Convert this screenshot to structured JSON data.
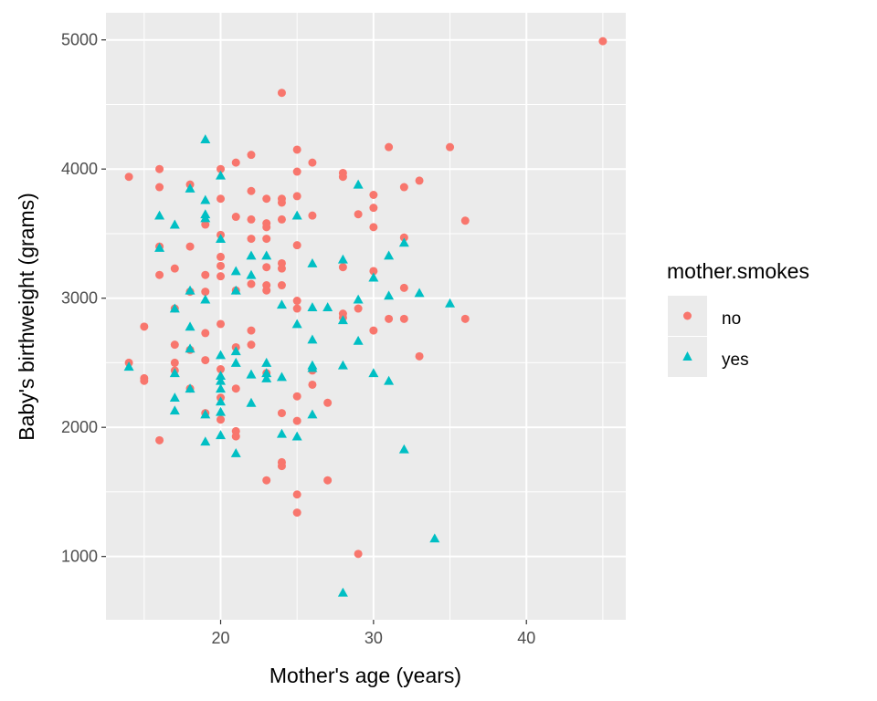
{
  "chart_data": {
    "type": "scatter",
    "title": "",
    "xlabel": "Mother's age (years)",
    "ylabel": "Baby's birthweight (grams)",
    "xlim": [
      12.5,
      46.5
    ],
    "ylim": [
      510,
      5210
    ],
    "x_ticks": [
      20,
      30,
      40
    ],
    "y_ticks": [
      1000,
      2000,
      3000,
      4000,
      5000
    ],
    "x_tick_labels": [
      "20",
      "30",
      "40"
    ],
    "y_tick_labels": [
      "1000",
      "2000",
      "3000",
      "4000",
      "5000"
    ],
    "grid": true,
    "legend": {
      "title": "mother.smokes",
      "position": "right"
    },
    "series": [
      {
        "name": "no",
        "marker": "circle",
        "color": "#F8766D",
        "points": [
          [
            14,
            3940
          ],
          [
            14,
            2500
          ],
          [
            15,
            2780
          ],
          [
            15,
            2380
          ],
          [
            15,
            2360
          ],
          [
            16,
            4000
          ],
          [
            16,
            3860
          ],
          [
            16,
            3400
          ],
          [
            16,
            3180
          ],
          [
            16,
            1900
          ],
          [
            17,
            3230
          ],
          [
            17,
            2920
          ],
          [
            17,
            2640
          ],
          [
            17,
            2500
          ],
          [
            17,
            2440
          ],
          [
            18,
            3880
          ],
          [
            18,
            3400
          ],
          [
            18,
            3050
          ],
          [
            18,
            2600
          ],
          [
            18,
            2300
          ],
          [
            19,
            3570
          ],
          [
            19,
            3180
          ],
          [
            19,
            3050
          ],
          [
            19,
            2730
          ],
          [
            19,
            2520
          ],
          [
            19,
            2110
          ],
          [
            20,
            4000
          ],
          [
            20,
            3770
          ],
          [
            20,
            3490
          ],
          [
            20,
            3320
          ],
          [
            20,
            3250
          ],
          [
            20,
            3170
          ],
          [
            20,
            2800
          ],
          [
            20,
            2450
          ],
          [
            20,
            2230
          ],
          [
            20,
            2060
          ],
          [
            21,
            4050
          ],
          [
            21,
            3630
          ],
          [
            21,
            3060
          ],
          [
            21,
            2620
          ],
          [
            21,
            2300
          ],
          [
            21,
            1970
          ],
          [
            21,
            1930
          ],
          [
            22,
            4110
          ],
          [
            22,
            3830
          ],
          [
            22,
            3610
          ],
          [
            22,
            3460
          ],
          [
            22,
            3110
          ],
          [
            22,
            2750
          ],
          [
            22,
            2640
          ],
          [
            23,
            3770
          ],
          [
            23,
            3580
          ],
          [
            23,
            3550
          ],
          [
            23,
            3460
          ],
          [
            23,
            3240
          ],
          [
            23,
            3100
          ],
          [
            23,
            3060
          ],
          [
            23,
            2420
          ],
          [
            23,
            1590
          ],
          [
            24,
            4590
          ],
          [
            24,
            3770
          ],
          [
            24,
            3740
          ],
          [
            24,
            3610
          ],
          [
            24,
            3270
          ],
          [
            24,
            3230
          ],
          [
            24,
            3100
          ],
          [
            24,
            2110
          ],
          [
            24,
            1730
          ],
          [
            24,
            1700
          ],
          [
            25,
            4150
          ],
          [
            25,
            3980
          ],
          [
            25,
            3790
          ],
          [
            25,
            3410
          ],
          [
            25,
            2980
          ],
          [
            25,
            2920
          ],
          [
            25,
            2240
          ],
          [
            25,
            2050
          ],
          [
            25,
            1480
          ],
          [
            25,
            1340
          ],
          [
            26,
            4050
          ],
          [
            26,
            3640
          ],
          [
            26,
            2440
          ],
          [
            26,
            2330
          ],
          [
            27,
            2190
          ],
          [
            27,
            1590
          ],
          [
            28,
            3970
          ],
          [
            28,
            3940
          ],
          [
            28,
            3240
          ],
          [
            28,
            2880
          ],
          [
            28,
            2850
          ],
          [
            29,
            3650
          ],
          [
            29,
            2920
          ],
          [
            29,
            1020
          ],
          [
            30,
            3800
          ],
          [
            30,
            3700
          ],
          [
            30,
            3550
          ],
          [
            30,
            3210
          ],
          [
            30,
            2750
          ],
          [
            31,
            4170
          ],
          [
            31,
            2840
          ],
          [
            32,
            3860
          ],
          [
            32,
            3470
          ],
          [
            32,
            3080
          ],
          [
            32,
            2840
          ],
          [
            33,
            3910
          ],
          [
            33,
            2550
          ],
          [
            35,
            4170
          ],
          [
            36,
            3600
          ],
          [
            36,
            2840
          ],
          [
            45,
            4990
          ]
        ]
      },
      {
        "name": "yes",
        "marker": "triangle",
        "color": "#00BFC4",
        "points": [
          [
            14,
            2470
          ],
          [
            16,
            3640
          ],
          [
            16,
            3390
          ],
          [
            17,
            3570
          ],
          [
            17,
            2920
          ],
          [
            17,
            2420
          ],
          [
            17,
            2230
          ],
          [
            17,
            2130
          ],
          [
            18,
            3850
          ],
          [
            18,
            3060
          ],
          [
            18,
            2780
          ],
          [
            18,
            2610
          ],
          [
            18,
            2300
          ],
          [
            19,
            4230
          ],
          [
            19,
            3760
          ],
          [
            19,
            3650
          ],
          [
            19,
            3620
          ],
          [
            19,
            2990
          ],
          [
            19,
            2100
          ],
          [
            19,
            1890
          ],
          [
            20,
            3950
          ],
          [
            20,
            3460
          ],
          [
            20,
            2560
          ],
          [
            20,
            2400
          ],
          [
            20,
            2360
          ],
          [
            20,
            2300
          ],
          [
            20,
            2200
          ],
          [
            20,
            2120
          ],
          [
            20,
            1940
          ],
          [
            21,
            3210
          ],
          [
            21,
            3060
          ],
          [
            21,
            2590
          ],
          [
            21,
            2500
          ],
          [
            21,
            1800
          ],
          [
            22,
            3330
          ],
          [
            22,
            3180
          ],
          [
            22,
            2410
          ],
          [
            22,
            2190
          ],
          [
            23,
            3330
          ],
          [
            23,
            2500
          ],
          [
            23,
            2420
          ],
          [
            23,
            2380
          ],
          [
            24,
            2950
          ],
          [
            24,
            2390
          ],
          [
            24,
            1950
          ],
          [
            25,
            3640
          ],
          [
            25,
            2800
          ],
          [
            25,
            1930
          ],
          [
            26,
            3270
          ],
          [
            26,
            2930
          ],
          [
            26,
            2680
          ],
          [
            26,
            2480
          ],
          [
            26,
            2460
          ],
          [
            26,
            2100
          ],
          [
            27,
            2930
          ],
          [
            28,
            3300
          ],
          [
            28,
            2830
          ],
          [
            28,
            2480
          ],
          [
            28,
            720
          ],
          [
            29,
            3880
          ],
          [
            29,
            2990
          ],
          [
            29,
            2670
          ],
          [
            30,
            3160
          ],
          [
            30,
            2420
          ],
          [
            31,
            3330
          ],
          [
            31,
            3020
          ],
          [
            31,
            2360
          ],
          [
            32,
            3430
          ],
          [
            32,
            1830
          ],
          [
            33,
            3040
          ],
          [
            34,
            1140
          ],
          [
            35,
            2960
          ]
        ]
      }
    ]
  }
}
